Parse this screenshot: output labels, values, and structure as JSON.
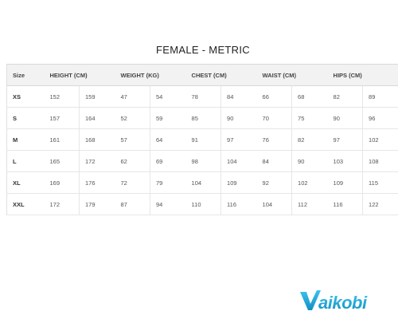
{
  "title": "FEMALE - METRIC",
  "table": {
    "size_header": "Size",
    "groups": [
      "HEIGHT (CM)",
      "WEIGHT (KG)",
      "CHEST (CM)",
      "WAIST (CM)",
      "HIPS (CM)"
    ],
    "rows": [
      {
        "size": "XS",
        "values": [
          "152",
          "159",
          "47",
          "54",
          "78",
          "84",
          "66",
          "68",
          "82",
          "89"
        ]
      },
      {
        "size": "S",
        "values": [
          "157",
          "164",
          "52",
          "59",
          "85",
          "90",
          "70",
          "75",
          "90",
          "96"
        ]
      },
      {
        "size": "M",
        "values": [
          "161",
          "168",
          "57",
          "64",
          "91",
          "97",
          "76",
          "82",
          "97",
          "102"
        ]
      },
      {
        "size": "L",
        "values": [
          "165",
          "172",
          "62",
          "69",
          "98",
          "104",
          "84",
          "90",
          "103",
          "108"
        ]
      },
      {
        "size": "XL",
        "values": [
          "169",
          "176",
          "72",
          "79",
          "104",
          "109",
          "92",
          "102",
          "109",
          "115"
        ]
      },
      {
        "size": "XXL",
        "values": [
          "172",
          "179",
          "87",
          "94",
          "110",
          "116",
          "104",
          "112",
          "116",
          "122"
        ]
      }
    ]
  },
  "logo": {
    "text": "Vaikobi",
    "color": "#1ea3d6"
  }
}
